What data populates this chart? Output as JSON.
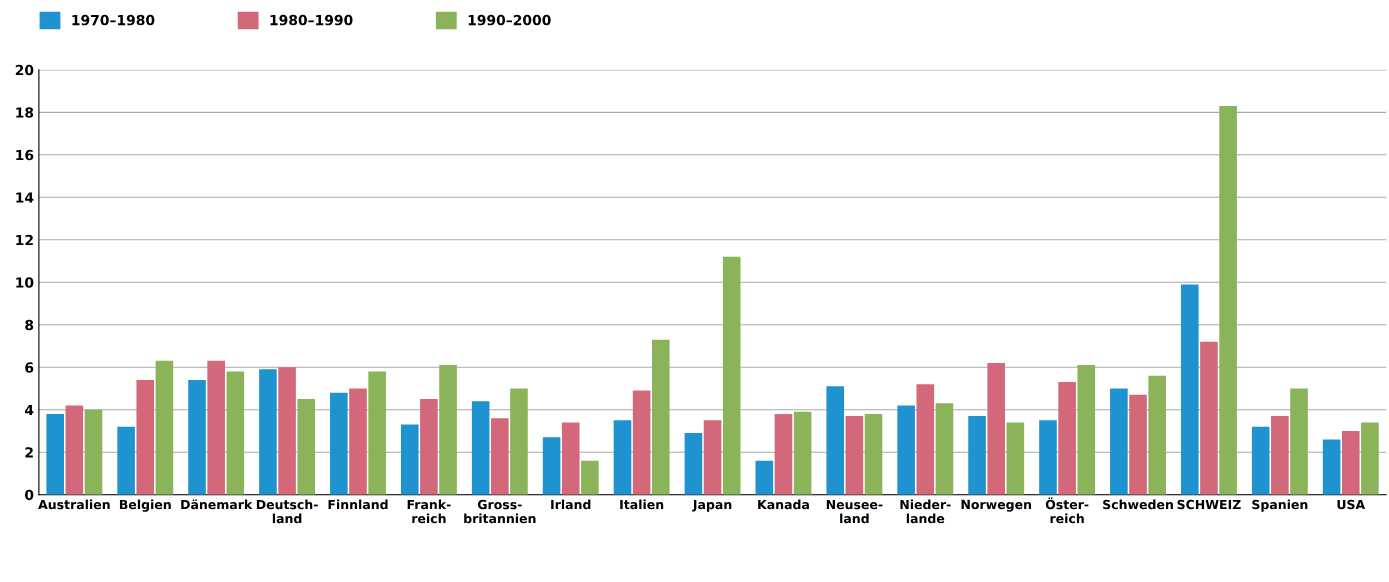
{
  "chart_data": {
    "type": "bar",
    "categories": [
      "Australien",
      "Belgien",
      "Dänemark",
      "Deutsch-\nland",
      "Finnland",
      "Frank-\nreich",
      "Gross-\nbritannien",
      "Irland",
      "Italien",
      "Japan",
      "Kanada",
      "Neusee-\nland",
      "Nieder-\nlande",
      "Norwegen",
      "Öster-\nreich",
      "Schweden",
      "SCHWEIZ",
      "Spanien",
      "USA"
    ],
    "series": [
      {
        "name": "1970–1980",
        "color": "#1f93d0",
        "values": [
          3.8,
          3.2,
          5.4,
          5.9,
          4.8,
          3.3,
          4.4,
          2.7,
          3.5,
          2.9,
          1.6,
          5.1,
          4.2,
          3.7,
          3.5,
          5.0,
          9.9,
          3.2,
          2.6
        ]
      },
      {
        "name": "1980–1990",
        "color": "#d2687a",
        "values": [
          4.2,
          5.4,
          6.3,
          6.0,
          5.0,
          4.5,
          3.6,
          3.4,
          4.9,
          3.5,
          3.8,
          3.7,
          5.2,
          6.2,
          5.3,
          4.7,
          7.2,
          3.7,
          3.0
        ]
      },
      {
        "name": "1990–2000",
        "color": "#8ab35a",
        "values": [
          4.0,
          6.3,
          5.8,
          4.5,
          5.8,
          6.1,
          5.0,
          1.6,
          7.3,
          11.2,
          3.9,
          3.8,
          4.3,
          3.4,
          6.1,
          5.6,
          18.3,
          5.0,
          3.4
        ]
      }
    ],
    "ylim": [
      0,
      20
    ],
    "yticks": [
      0,
      2,
      4,
      6,
      8,
      10,
      12,
      14,
      16,
      18,
      20
    ],
    "grid": "y",
    "legend": "top left"
  }
}
